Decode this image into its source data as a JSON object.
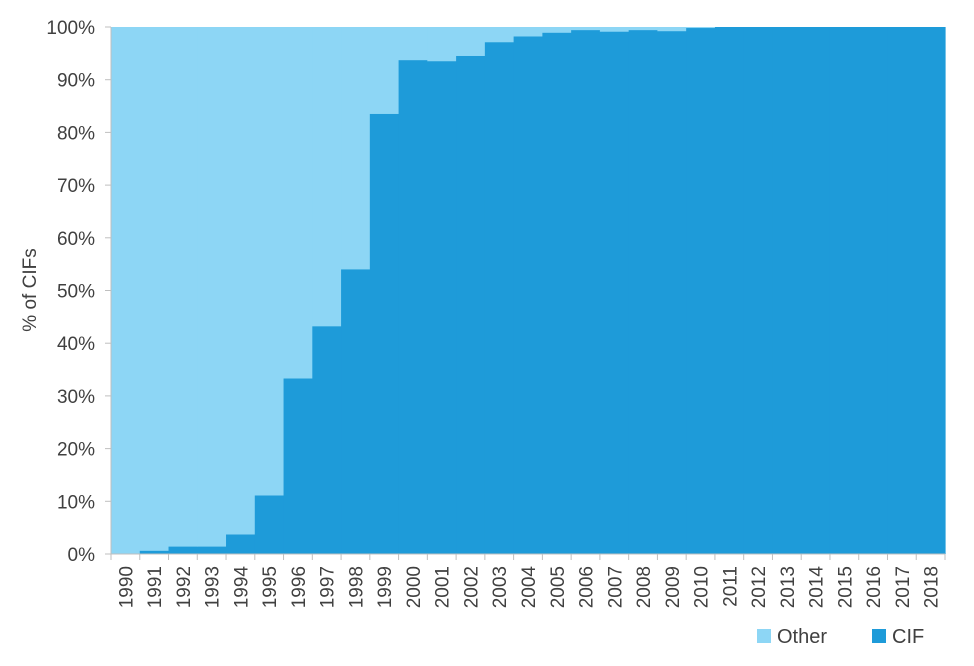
{
  "chart_data": {
    "type": "area",
    "stacking": "percent",
    "step": true,
    "title": "",
    "xlabel": "",
    "ylabel": "% of CIFs",
    "ylim": [
      0,
      100
    ],
    "y_ticks": [
      0,
      10,
      20,
      30,
      40,
      50,
      60,
      70,
      80,
      90,
      100
    ],
    "y_tick_suffix": "%",
    "grid": false,
    "legend_position": "bottom-right",
    "categories": [
      "1990",
      "1991",
      "1992",
      "1993",
      "1994",
      "1995",
      "1996",
      "1997",
      "1998",
      "1999",
      "2000",
      "2001",
      "2002",
      "2003",
      "2004",
      "2005",
      "2006",
      "2007",
      "2008",
      "2009",
      "2010",
      "2011",
      "2012",
      "2013",
      "2014",
      "2015",
      "2016",
      "2017",
      "2018"
    ],
    "series": [
      {
        "name": "Other",
        "color": "#8dd6f5",
        "values": [
          100,
          99.4,
          98.6,
          98.6,
          96.3,
          88.9,
          66.7,
          56.8,
          46.0,
          16.5,
          6.3,
          6.5,
          5.5,
          2.9,
          1.8,
          1.1,
          0.6,
          0.9,
          0.6,
          0.8,
          0.2,
          0,
          0,
          0,
          0,
          0,
          0,
          0,
          0
        ]
      },
      {
        "name": "CIF",
        "color": "#1e9bd9",
        "values": [
          0,
          0.6,
          1.4,
          1.4,
          3.7,
          11.1,
          33.3,
          43.2,
          54.0,
          83.5,
          93.7,
          93.5,
          94.5,
          97.1,
          98.2,
          98.9,
          99.4,
          99.1,
          99.4,
          99.2,
          99.8,
          100,
          100,
          100,
          100,
          100,
          100,
          100,
          100
        ]
      }
    ]
  }
}
